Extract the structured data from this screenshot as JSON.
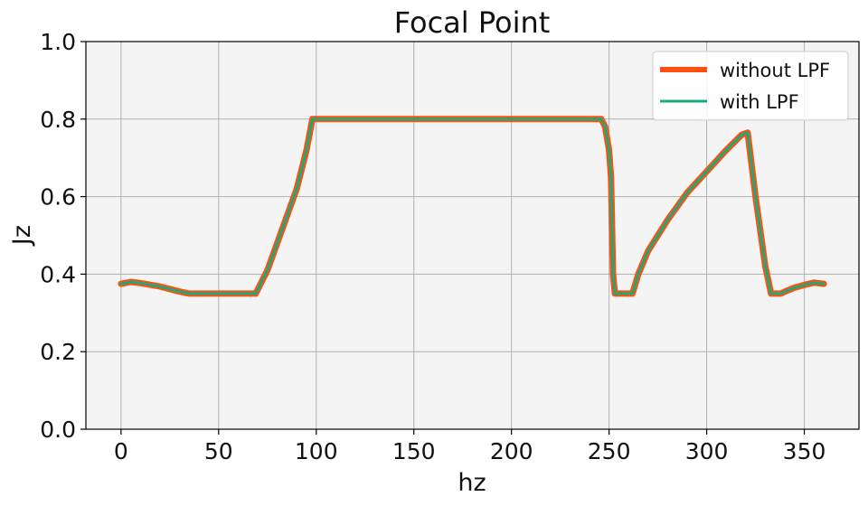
{
  "chart_data": {
    "type": "line",
    "title": "Focal Point",
    "xlabel": "hz",
    "ylabel": "Jz",
    "xlim": [
      -18,
      378
    ],
    "ylim": [
      0.0,
      1.0
    ],
    "xticks": [
      0,
      50,
      100,
      150,
      200,
      250,
      300,
      350
    ],
    "yticks": [
      0.0,
      0.2,
      0.4,
      0.6,
      0.8,
      1.0
    ],
    "xtick_labels": [
      "0",
      "50",
      "100",
      "150",
      "200",
      "250",
      "300",
      "350"
    ],
    "ytick_labels": [
      "0.0",
      "0.2",
      "0.4",
      "0.6",
      "0.8",
      "1.0"
    ],
    "grid": true,
    "legend_position": "top-right",
    "background": "#f4f4f4",
    "series": [
      {
        "name": "without LPF",
        "color": "#ff5010",
        "x": [
          0,
          5,
          10,
          20,
          30,
          35,
          40,
          50,
          60,
          69,
          75,
          80,
          85,
          90,
          95,
          98,
          100,
          130,
          150,
          200,
          246,
          248,
          250,
          251,
          252,
          253,
          255,
          260,
          262,
          265,
          270,
          280,
          290,
          300,
          310,
          318,
          321,
          325,
          330,
          333,
          335,
          338,
          340,
          345,
          350,
          355,
          360
        ],
        "y": [
          0.375,
          0.38,
          0.377,
          0.368,
          0.355,
          0.35,
          0.35,
          0.35,
          0.35,
          0.35,
          0.41,
          0.48,
          0.55,
          0.62,
          0.72,
          0.8,
          0.8,
          0.8,
          0.8,
          0.8,
          0.8,
          0.78,
          0.72,
          0.65,
          0.4,
          0.35,
          0.35,
          0.35,
          0.35,
          0.4,
          0.46,
          0.54,
          0.61,
          0.665,
          0.72,
          0.76,
          0.765,
          0.6,
          0.42,
          0.35,
          0.35,
          0.35,
          0.355,
          0.365,
          0.372,
          0.378,
          0.375
        ]
      },
      {
        "name": "with LPF",
        "color": "#20a878",
        "x": [
          0,
          5,
          10,
          20,
          30,
          35,
          40,
          50,
          60,
          69,
          75,
          80,
          85,
          90,
          95,
          98,
          100,
          130,
          150,
          200,
          246,
          248,
          250,
          251,
          252,
          253,
          255,
          260,
          262,
          265,
          270,
          280,
          290,
          300,
          310,
          318,
          321,
          325,
          330,
          333,
          335,
          338,
          340,
          345,
          350,
          355,
          360
        ],
        "y": [
          0.375,
          0.38,
          0.377,
          0.368,
          0.355,
          0.35,
          0.35,
          0.35,
          0.35,
          0.35,
          0.41,
          0.48,
          0.55,
          0.62,
          0.72,
          0.8,
          0.8,
          0.8,
          0.8,
          0.8,
          0.8,
          0.78,
          0.72,
          0.65,
          0.4,
          0.35,
          0.35,
          0.35,
          0.35,
          0.4,
          0.46,
          0.54,
          0.61,
          0.665,
          0.72,
          0.76,
          0.765,
          0.6,
          0.42,
          0.35,
          0.35,
          0.35,
          0.355,
          0.365,
          0.372,
          0.378,
          0.375
        ]
      }
    ]
  }
}
